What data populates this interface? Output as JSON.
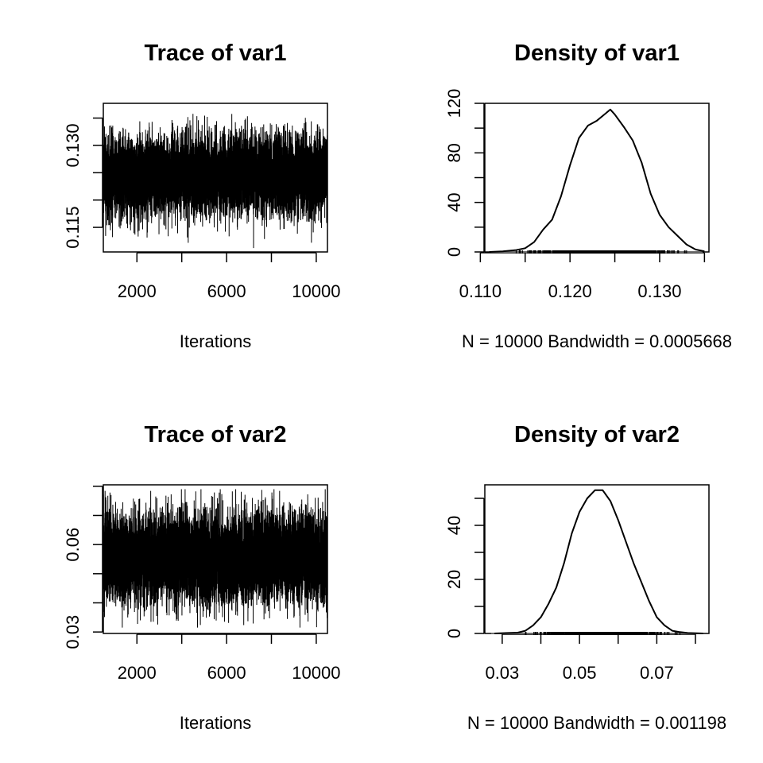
{
  "chart_data": [
    {
      "type": "line",
      "title": "Trace of var1",
      "xlabel": "Iterations",
      "ylabel": "",
      "x_range": [
        501,
        10500
      ],
      "xticks": [
        2000,
        4000,
        6000,
        8000,
        10000
      ],
      "xtick_labels": [
        "2000",
        "",
        "6000",
        "",
        "10000"
      ],
      "ylim": [
        0.1105,
        0.1377
      ],
      "yticks": [
        0.115,
        0.12,
        0.125,
        0.13,
        0.135
      ],
      "ytick_labels": [
        "0.115",
        "",
        "",
        "0.130",
        ""
      ],
      "series": [
        {
          "mean": 0.1245,
          "sd": 0.0035,
          "min": 0.1102,
          "max": 0.1375,
          "n": 10000
        }
      ]
    },
    {
      "type": "line",
      "title": "Density of var1",
      "xlabel": "N = 10000   Bandwidth = 0.0005668",
      "ylabel": "",
      "x_range": [
        0.1105,
        0.1355
      ],
      "xticks": [
        0.11,
        0.115,
        0.12,
        0.125,
        0.13,
        0.135
      ],
      "xtick_labels": [
        "0.110",
        "",
        "0.120",
        "",
        "0.130",
        ""
      ],
      "ylim": [
        0,
        120
      ],
      "yticks": [
        0,
        20,
        40,
        60,
        80,
        100,
        120
      ],
      "ytick_labels": [
        "0",
        "",
        "40",
        "",
        "80",
        "",
        "120"
      ],
      "series": [
        {
          "x": [
            0.111,
            0.1125,
            0.114,
            0.115,
            0.116,
            0.117,
            0.118,
            0.119,
            0.12,
            0.121,
            0.122,
            0.123,
            0.124,
            0.1245,
            0.125,
            0.126,
            0.127,
            0.128,
            0.129,
            0.13,
            0.131,
            0.132,
            0.133,
            0.134,
            0.135
          ],
          "y": [
            0,
            0.5,
            1.5,
            3,
            8,
            18,
            26,
            45,
            70,
            92,
            102,
            106,
            112,
            115,
            111,
            101,
            90,
            72,
            47,
            30,
            20,
            13,
            6,
            2,
            0.5
          ]
        }
      ]
    },
    {
      "type": "line",
      "title": "Trace of var2",
      "xlabel": "Iterations",
      "ylabel": "",
      "x_range": [
        501,
        10500
      ],
      "xticks": [
        2000,
        4000,
        6000,
        8000,
        10000
      ],
      "xtick_labels": [
        "2000",
        "",
        "6000",
        "",
        "10000"
      ],
      "ylim": [
        0.0295,
        0.0805
      ],
      "yticks": [
        0.03,
        0.04,
        0.05,
        0.06,
        0.07,
        0.08
      ],
      "ytick_labels": [
        "0.03",
        "",
        "",
        "0.06",
        "",
        ""
      ],
      "series": [
        {
          "mean": 0.0555,
          "sd": 0.0075,
          "min": 0.0315,
          "max": 0.079,
          "n": 10000
        }
      ]
    },
    {
      "type": "line",
      "title": "Density of var2",
      "xlabel": "N = 10000   Bandwidth = 0.001198",
      "ylabel": "",
      "x_range": [
        0.0255,
        0.0835
      ],
      "xticks": [
        0.03,
        0.04,
        0.05,
        0.06,
        0.07,
        0.08
      ],
      "xtick_labels": [
        "0.03",
        "",
        "0.05",
        "",
        "0.07",
        ""
      ],
      "ylim": [
        0,
        55
      ],
      "yticks": [
        0,
        10,
        20,
        30,
        40,
        50
      ],
      "ytick_labels": [
        "0",
        "",
        "20",
        "",
        "40",
        ""
      ],
      "series": [
        {
          "x": [
            0.028,
            0.034,
            0.036,
            0.038,
            0.04,
            0.042,
            0.044,
            0.046,
            0.048,
            0.05,
            0.052,
            0.054,
            0.056,
            0.058,
            0.06,
            0.062,
            0.064,
            0.066,
            0.068,
            0.07,
            0.072,
            0.074,
            0.076,
            0.078,
            0.082
          ],
          "y": [
            0,
            0.3,
            1,
            3,
            6,
            11,
            17,
            26,
            37,
            45,
            50,
            53,
            53,
            49,
            42,
            34,
            26,
            19,
            12,
            6,
            3,
            1,
            0.5,
            0.2,
            0
          ]
        }
      ]
    }
  ]
}
